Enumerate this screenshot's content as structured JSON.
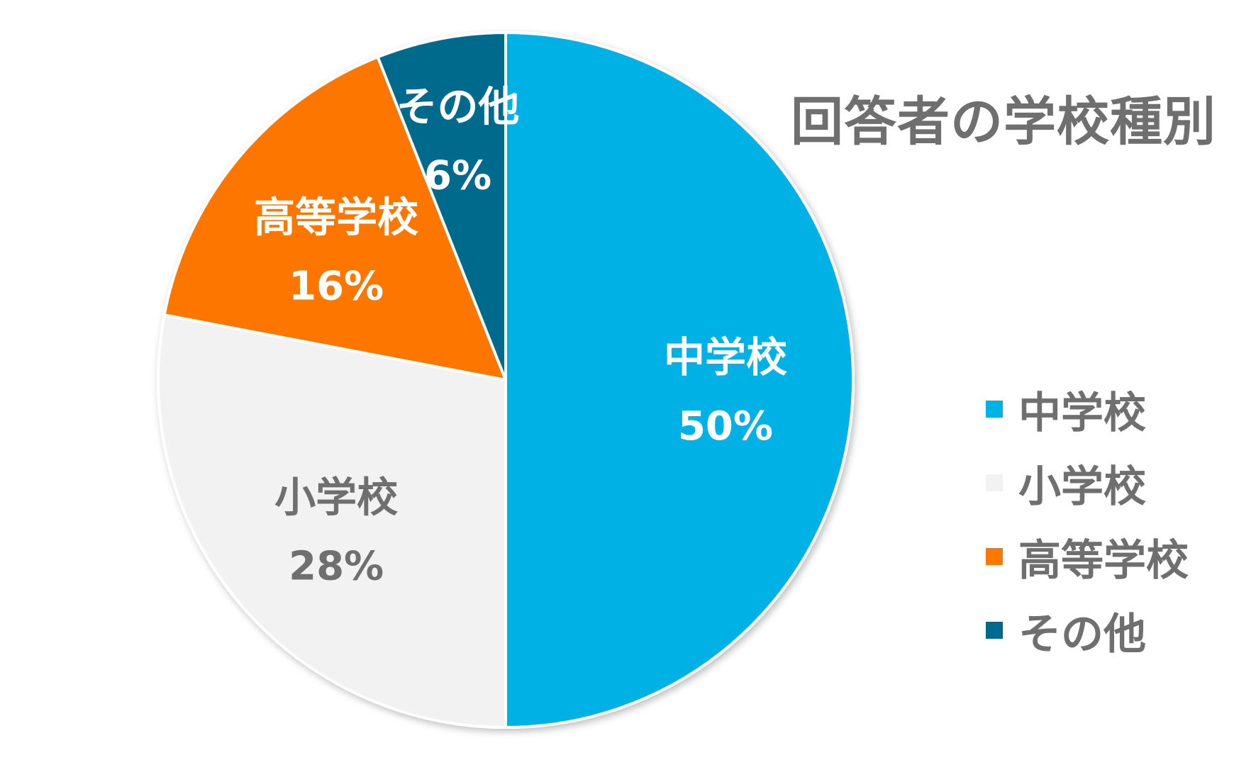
{
  "chart_data": {
    "type": "pie",
    "title": "回答者の学校種別",
    "slices": [
      {
        "label": "中学校",
        "value": 50,
        "value_label": "50%",
        "color": "#00b1e6",
        "text_color": "#ffffff"
      },
      {
        "label": "小学校",
        "value": 28,
        "value_label": "28%",
        "color": "#f2f2f2",
        "text_color": "#6f6f6f"
      },
      {
        "label": "高等学校",
        "value": 16,
        "value_label": "16%",
        "color": "#fd7702",
        "text_color": "#ffffff"
      },
      {
        "label": "その他",
        "value": 6,
        "value_label": "6%",
        "color": "#006a8c",
        "text_color": "#ffffff"
      }
    ],
    "start": "12 o'clock, clockwise",
    "legend_position": "right"
  }
}
